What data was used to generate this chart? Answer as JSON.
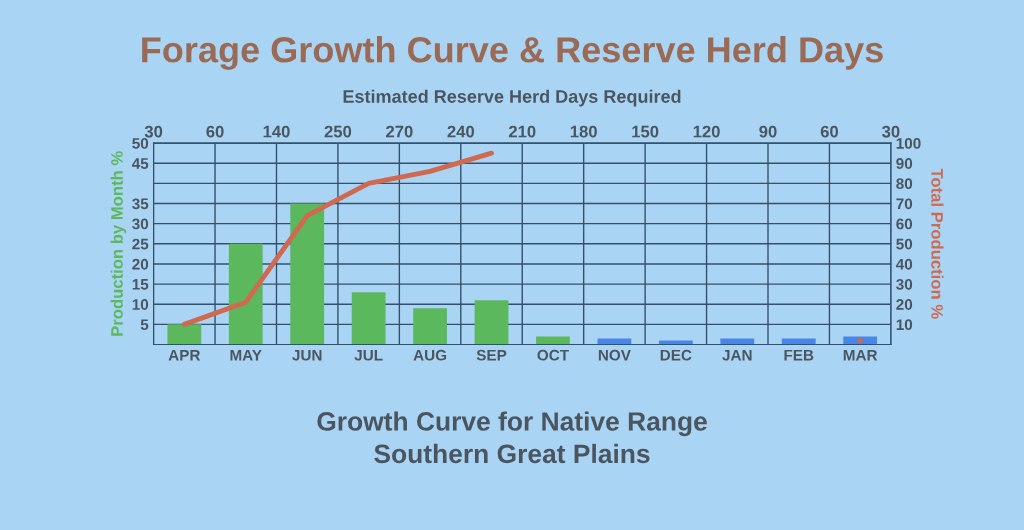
{
  "chart_data": {
    "type": "bar",
    "title": "Forage Growth Curve & Reserve Herd Days",
    "categories": [
      "APR",
      "MAY",
      "JUN",
      "JUL",
      "AUG",
      "SEP",
      "OCT",
      "NOV",
      "DEC",
      "JAN",
      "FEB",
      "MAR"
    ],
    "series": [
      {
        "values": [
          5,
          25,
          35,
          13,
          9,
          11,
          2,
          1.5,
          1,
          1.5,
          1.5,
          2
        ],
        "colors": [
          "#5cb85c",
          "#5cb85c",
          "#5cb85c",
          "#5cb85c",
          "#5cb85c",
          "#5cb85c",
          "#5cb85c",
          "#4a86e8",
          "#4a86e8",
          "#4a86e8",
          "#4a86e8",
          "#4a86e8"
        ]
      },
      {
        "type": "line",
        "axis": "y2",
        "color": "#d0694f",
        "values": [
          10,
          21,
          64,
          80,
          86,
          95,
          null,
          null,
          null,
          null,
          null,
          2
        ]
      }
    ],
    "ylabel": "Production by Month %",
    "y2label": "Total Production %",
    "ylim": [
      0,
      50
    ],
    "yticks": [
      5,
      10,
      15,
      20,
      25,
      30,
      35,
      {
        "value": 40,
        "label": null
      },
      45,
      50
    ],
    "y2lim": [
      0,
      100
    ],
    "y2ticks": [
      10,
      20,
      30,
      40,
      50,
      60,
      70,
      80,
      90,
      100
    ],
    "grid": true,
    "annotations": [
      "Estimated Reserve Herd Days Required",
      "30",
      "60",
      "140",
      "250",
      "270",
      "240",
      "210",
      "180",
      "150",
      "120",
      "90",
      "60",
      "30",
      "Growth Curve for Native Range\nSouthern Great Plains"
    ]
  }
}
